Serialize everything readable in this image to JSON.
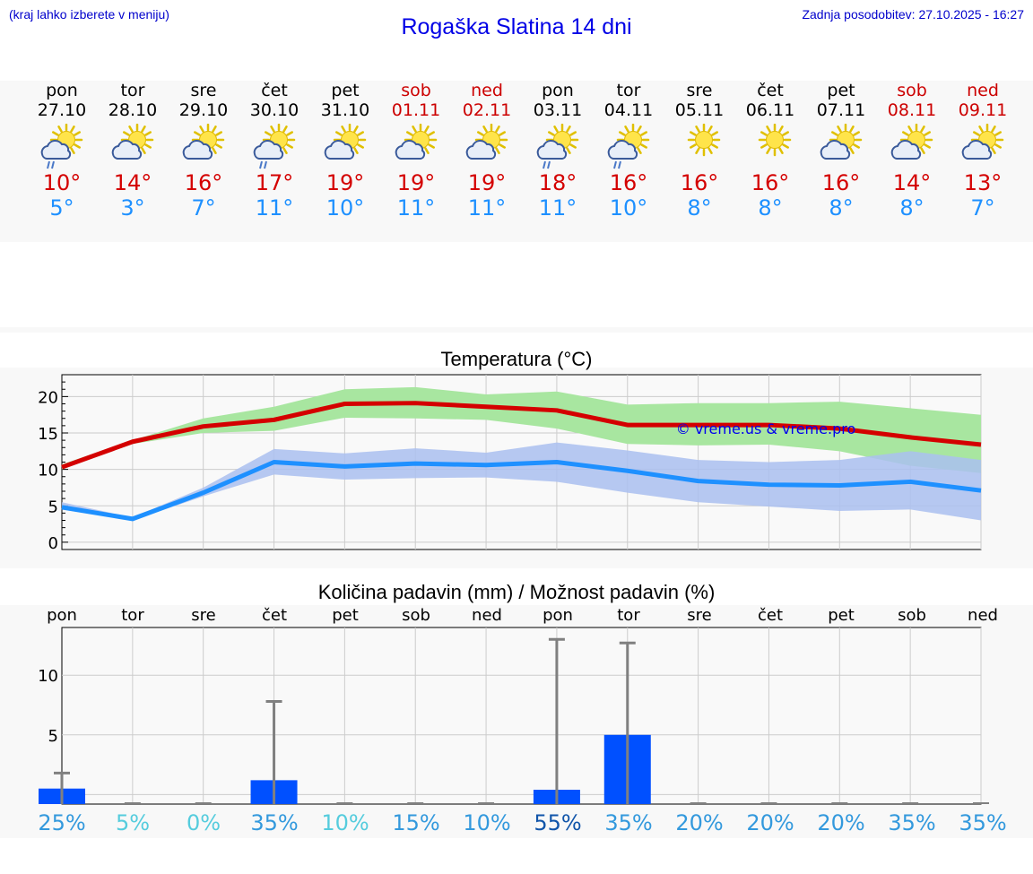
{
  "header": {
    "menu_hint": "(kraj lahko izberete v meniju)",
    "title": "Rogaška Slatina 14 dni",
    "last_update": "Zadnja posodobitev: 27.10.2025 - 16:27"
  },
  "colors": {
    "max_temp": "#d40000",
    "min_temp": "#1e90ff",
    "weekend": "#cc0000",
    "max_band": "#a8e6a0",
    "min_band": "#aabff0",
    "bar": "#0050ff",
    "error_bar": "#808080"
  },
  "days": [
    {
      "name": "pon",
      "date": "27.10",
      "weekend": false,
      "icon": "sun-cloud-rain-icon",
      "tmax": "10°",
      "tmin": "5°"
    },
    {
      "name": "tor",
      "date": "28.10",
      "weekend": false,
      "icon": "sun-cloud-icon",
      "tmax": "14°",
      "tmin": "3°"
    },
    {
      "name": "sre",
      "date": "29.10",
      "weekend": false,
      "icon": "sun-cloud-icon",
      "tmax": "16°",
      "tmin": "7°"
    },
    {
      "name": "čet",
      "date": "30.10",
      "weekend": false,
      "icon": "sun-cloud-rain-icon",
      "tmax": "17°",
      "tmin": "11°"
    },
    {
      "name": "pet",
      "date": "31.10",
      "weekend": false,
      "icon": "sun-cloud-icon",
      "tmax": "19°",
      "tmin": "10°"
    },
    {
      "name": "sob",
      "date": "01.11",
      "weekend": true,
      "icon": "sun-cloud-icon",
      "tmax": "19°",
      "tmin": "11°"
    },
    {
      "name": "ned",
      "date": "02.11",
      "weekend": true,
      "icon": "sun-cloud-icon",
      "tmax": "19°",
      "tmin": "11°"
    },
    {
      "name": "pon",
      "date": "03.11",
      "weekend": false,
      "icon": "sun-cloud-rain-icon",
      "tmax": "18°",
      "tmin": "11°"
    },
    {
      "name": "tor",
      "date": "04.11",
      "weekend": false,
      "icon": "sun-cloud-rain-icon",
      "tmax": "16°",
      "tmin": "10°"
    },
    {
      "name": "sre",
      "date": "05.11",
      "weekend": false,
      "icon": "sun-icon",
      "tmax": "16°",
      "tmin": "8°"
    },
    {
      "name": "čet",
      "date": "06.11",
      "weekend": false,
      "icon": "sun-icon",
      "tmax": "16°",
      "tmin": "8°"
    },
    {
      "name": "pet",
      "date": "07.11",
      "weekend": false,
      "icon": "sun-cloud-icon",
      "tmax": "16°",
      "tmin": "8°"
    },
    {
      "name": "sob",
      "date": "08.11",
      "weekend": true,
      "icon": "sun-cloud-icon",
      "tmax": "14°",
      "tmin": "8°"
    },
    {
      "name": "ned",
      "date": "09.11",
      "weekend": true,
      "icon": "sun-cloud-icon",
      "tmax": "13°",
      "tmin": "7°"
    }
  ],
  "chart_data": [
    {
      "type": "line",
      "title": "Temperatura (°C)",
      "watermark": "© vreme.us & vreme.pro",
      "x": [
        0,
        1,
        2,
        3,
        4,
        5,
        6,
        7,
        8,
        9,
        10,
        11,
        12,
        13
      ],
      "ylim": [
        -1,
        23
      ],
      "yticks": [
        0,
        5,
        10,
        15,
        20
      ],
      "grid": true,
      "series": [
        {
          "values": [
            10.3,
            13.8,
            15.9,
            16.8,
            19.0,
            19.1,
            18.6,
            18.1,
            16.1,
            16.1,
            16.1,
            15.6,
            14.4,
            13.4
          ],
          "band_low": [
            10.0,
            13.5,
            15.0,
            15.3,
            17.1,
            17.0,
            16.8,
            15.6,
            13.5,
            13.3,
            13.4,
            12.5,
            10.5,
            9.5
          ],
          "band_high": [
            10.7,
            14.0,
            17.0,
            18.6,
            21.0,
            21.3,
            20.3,
            20.7,
            18.9,
            19.1,
            19.1,
            19.3,
            18.4,
            17.5
          ]
        },
        {
          "values": [
            4.8,
            3.2,
            6.8,
            11.0,
            10.4,
            10.8,
            10.6,
            11.0,
            9.8,
            8.4,
            7.9,
            7.8,
            8.3,
            7.1
          ],
          "band_low": [
            4.5,
            3.0,
            6.3,
            9.3,
            8.6,
            8.8,
            8.9,
            8.3,
            6.8,
            5.5,
            4.9,
            4.3,
            4.5,
            3.0
          ],
          "band_high": [
            5.5,
            3.4,
            7.5,
            12.8,
            12.2,
            12.9,
            12.3,
            13.7,
            12.6,
            11.3,
            11.0,
            11.3,
            12.5,
            11.3
          ]
        }
      ]
    },
    {
      "type": "bar",
      "title": "Količina padavin (mm) / Možnost padavin (%)",
      "categories": [
        "pon",
        "tor",
        "sre",
        "čet",
        "pet",
        "sob",
        "ned",
        "pon",
        "tor",
        "sre",
        "čet",
        "pet",
        "sob",
        "ned"
      ],
      "values": [
        0.5,
        0,
        0,
        1.2,
        0,
        0,
        0,
        0.4,
        5.0,
        0,
        0,
        0,
        0,
        0
      ],
      "error_high": [
        1.8,
        0,
        0,
        7.8,
        0,
        0,
        0,
        13.0,
        12.7,
        0,
        0,
        0,
        0,
        0
      ],
      "ylim": [
        -0.8,
        14
      ],
      "yticks": [
        0,
        5,
        10
      ],
      "grid": true,
      "chance": [
        "25%",
        "5%",
        "0%",
        "35%",
        "10%",
        "15%",
        "10%",
        "55%",
        "35%",
        "20%",
        "20%",
        "20%",
        "35%",
        "35%"
      ],
      "chance_colors": [
        "#3399dd",
        "#55ccdd",
        "#55ccdd",
        "#3399dd",
        "#55ccdd",
        "#3399dd",
        "#3399dd",
        "#1155aa",
        "#3399dd",
        "#3399dd",
        "#3399dd",
        "#3399dd",
        "#3399dd",
        "#3399dd"
      ]
    }
  ]
}
